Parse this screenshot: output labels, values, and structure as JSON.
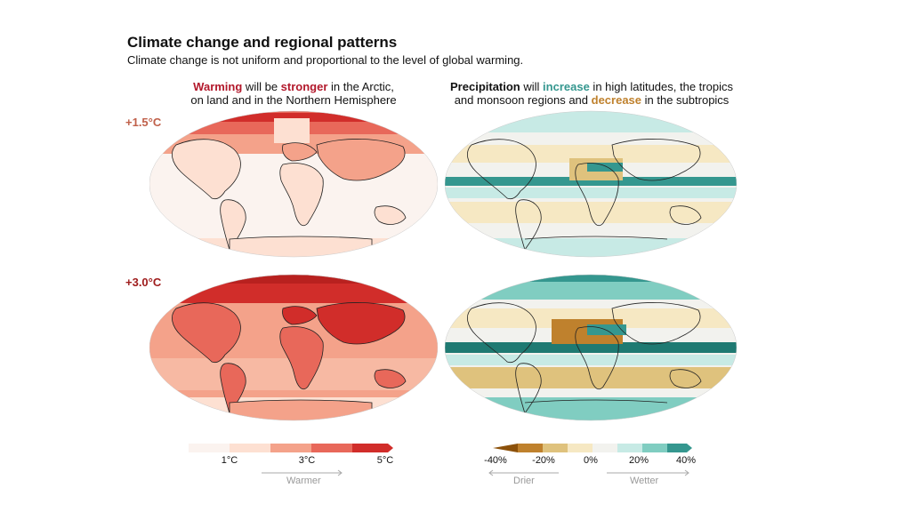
{
  "title": "Climate change and regional patterns",
  "subtitle": "Climate change is not uniform and proportional to the level of global warming.",
  "colors": {
    "warming_keyword": "#b2182b",
    "increase_keyword": "#35978f",
    "decrease_keyword": "#bf812d",
    "row1_label": "#c0604a",
    "row2_label": "#9e1b1b"
  },
  "left_header": {
    "keyword1": "Warming",
    "part1": " will be ",
    "keyword2": "stronger",
    "part2": " in the Arctic,",
    "line2": "on land and in the Northern Hemisphere"
  },
  "right_header": {
    "keyword1": "Precipitation",
    "part1": " will ",
    "keyword2": "increase",
    "part2": " in high latitudes, the tropics",
    "line2_part1": "and monsoon regions and ",
    "line2_keyword": "decrease",
    "line2_part2": " in the subtropics"
  },
  "rows": [
    {
      "label": "+1.5°C"
    },
    {
      "label": "+3.0°C"
    }
  ],
  "temperature_legend": {
    "colors": [
      "#fbf3ef",
      "#fde0d2",
      "#f4a28a",
      "#e8685a",
      "#d12d2a"
    ],
    "ticks": [
      "1°C",
      "3°C",
      "5°C"
    ],
    "direction": "Warmer"
  },
  "precip_legend": {
    "colors": [
      "#8c510a",
      "#bf812d",
      "#dfc27d",
      "#f6e8c3",
      "#f2f2ee",
      "#c7eae5",
      "#80cdc1",
      "#35978f"
    ],
    "ticks": [
      "-40%",
      "-20%",
      "0%",
      "20%",
      "40%"
    ],
    "direction_left": "Drier",
    "direction_right": "Wetter"
  }
}
